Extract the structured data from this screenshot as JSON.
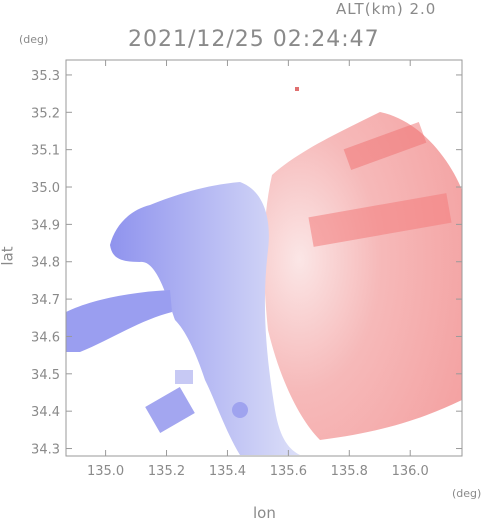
{
  "header": {
    "altitude_label": "ALT(km) 2.0",
    "timestamp": "2021/12/25 02:24:47"
  },
  "axes": {
    "x_label": "lon",
    "y_label": "lat",
    "x_unit": "(deg)",
    "y_unit": "(deg)",
    "x_range": [
      134.87,
      136.17
    ],
    "y_range": [
      34.28,
      35.34
    ],
    "x_ticks": [
      "135.0",
      "135.2",
      "135.4",
      "135.6",
      "135.8",
      "136.0"
    ],
    "y_ticks": [
      "35.3",
      "35.2",
      "35.1",
      "35.0",
      "34.9",
      "34.8",
      "34.7",
      "34.6",
      "34.5",
      "34.4",
      "34.3"
    ]
  },
  "map": {
    "type": "doppler-velocity-radar",
    "colors": {
      "approaching": "#8a8ef0",
      "receding": "#f08a8a",
      "frame": "#9a9a9a"
    }
  }
}
